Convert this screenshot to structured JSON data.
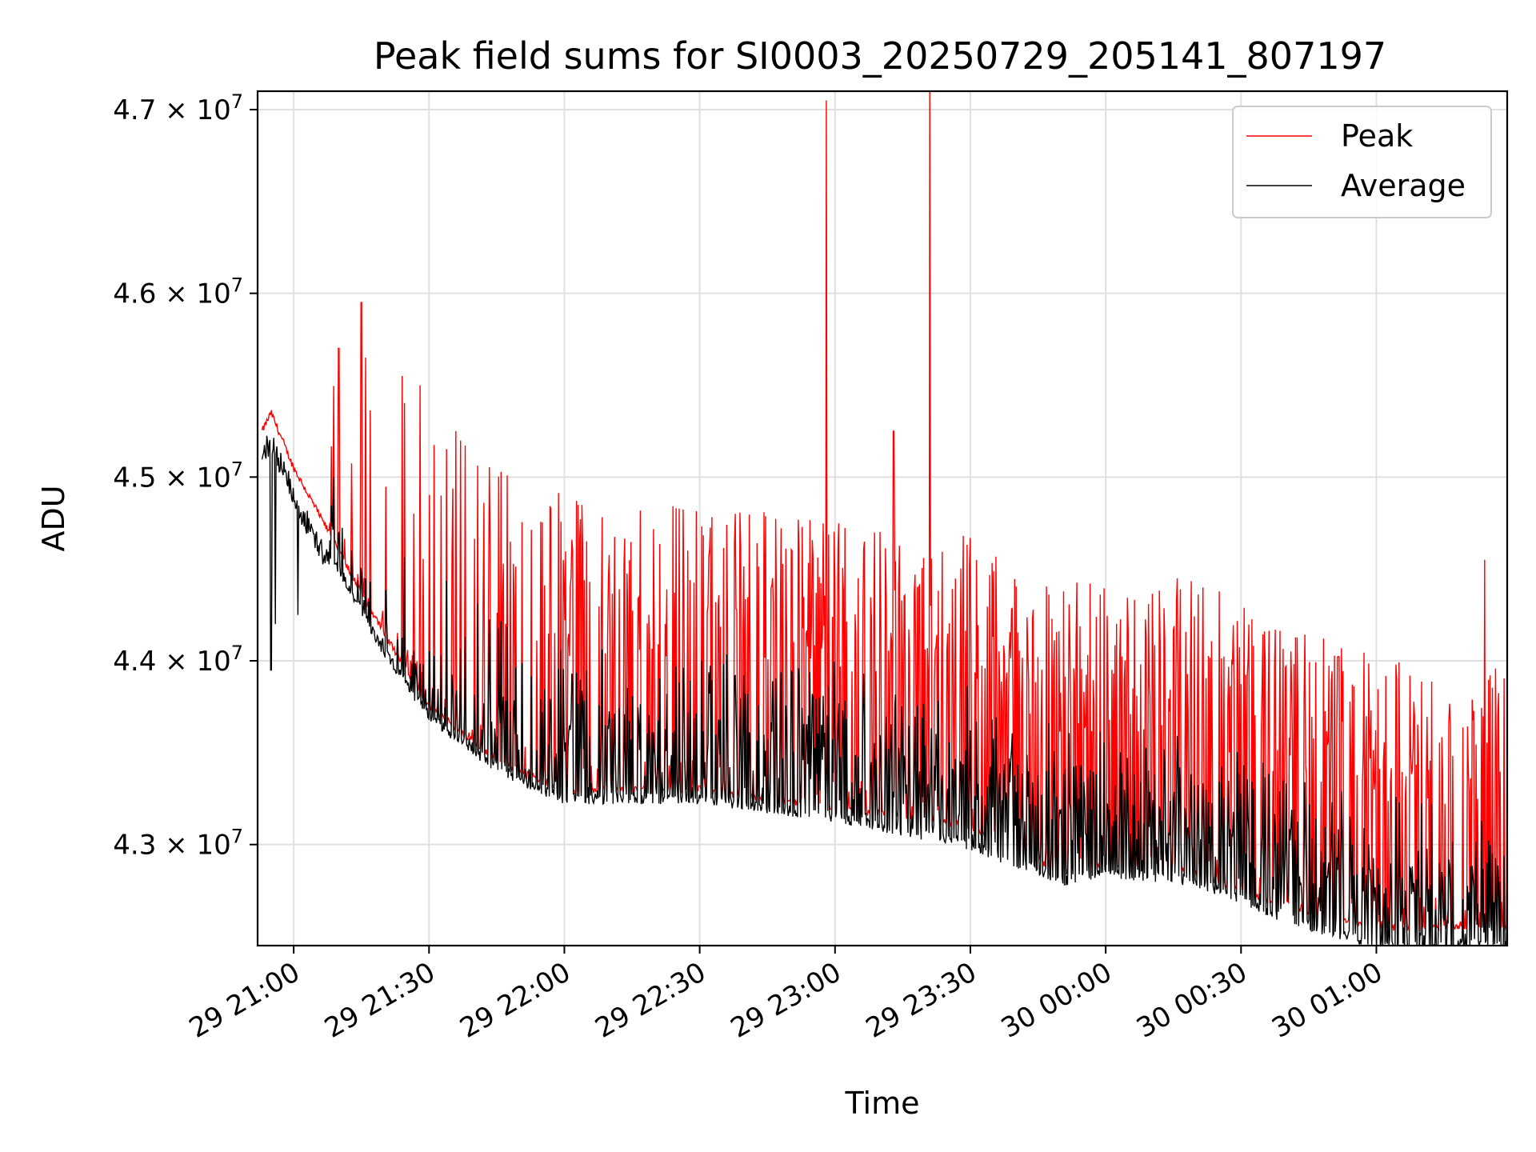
{
  "chart_data": {
    "type": "line",
    "title": "Peak field sums for SI0003_20250729_205141_807197",
    "xlabel": "Time",
    "ylabel": "ADU",
    "x_ticks": [
      "29 21:00",
      "29 21:30",
      "29 22:00",
      "29 22:30",
      "29 23:00",
      "29 23:30",
      "30 00:00",
      "30 00:30",
      "30 01:00"
    ],
    "y_ticks": [
      {
        "mantissa": "4.3",
        "times": "×",
        "base": "10",
        "exp": "7",
        "value": 43000000
      },
      {
        "mantissa": "4.4",
        "times": "×",
        "base": "10",
        "exp": "7",
        "value": 44000000
      },
      {
        "mantissa": "4.5",
        "times": "×",
        "base": "10",
        "exp": "7",
        "value": 45000000
      },
      {
        "mantissa": "4.6",
        "times": "×",
        "base": "10",
        "exp": "7",
        "value": 46000000
      },
      {
        "mantissa": "4.7",
        "times": "×",
        "base": "10",
        "exp": "7",
        "value": 47000000
      }
    ],
    "x_range": [
      "2025-07-29 20:52",
      "2025-07-30 01:29"
    ],
    "ylim": [
      42450000,
      47100000
    ],
    "grid": true,
    "legend_position": "top-right",
    "series": [
      {
        "name": "Peak",
        "color": "#ff0000",
        "baseline_points": [
          [
            "2025-07-29 20:52",
            45200000
          ],
          [
            "2025-07-29 20:55",
            45350000
          ],
          [
            "2025-07-29 21:00",
            45050000
          ],
          [
            "2025-07-29 21:10",
            44600000
          ],
          [
            "2025-07-29 21:20",
            44150000
          ],
          [
            "2025-07-29 21:30",
            43750000
          ],
          [
            "2025-07-29 21:40",
            43550000
          ],
          [
            "2025-07-29 21:50",
            43400000
          ],
          [
            "2025-07-29 22:00",
            43300000
          ],
          [
            "2025-07-29 22:30",
            43300000
          ],
          [
            "2025-07-29 23:00",
            43200000
          ],
          [
            "2025-07-29 23:30",
            43100000
          ],
          [
            "2025-07-29 23:50",
            42850000
          ],
          [
            "2025-07-30 00:00",
            42900000
          ],
          [
            "2025-07-30 00:20",
            42850000
          ],
          [
            "2025-07-30 00:40",
            42650000
          ],
          [
            "2025-07-30 01:00",
            42550000
          ],
          [
            "2025-07-30 01:29",
            42550000
          ]
        ],
        "spike_envelope": [
          [
            "2025-07-29 21:10",
            45500000
          ],
          [
            "2025-07-29 21:30",
            45400000
          ],
          [
            "2025-07-29 21:45",
            45100000
          ],
          [
            "2025-07-29 22:00",
            44900000
          ],
          [
            "2025-07-29 23:00",
            44800000
          ],
          [
            "2025-07-29 23:30",
            44700000
          ],
          [
            "2025-07-29 23:45",
            44400000
          ],
          [
            "2025-07-30 00:00",
            44450000
          ],
          [
            "2025-07-30 00:20",
            44450000
          ],
          [
            "2025-07-30 00:40",
            44200000
          ],
          [
            "2025-07-30 01:00",
            44050000
          ],
          [
            "2025-07-30 01:29",
            44000000
          ]
        ],
        "notable_spikes": [
          [
            "2025-07-29 21:10",
            45700000
          ],
          [
            "2025-07-29 21:15",
            45950000
          ],
          [
            "2025-07-29 21:16",
            45650000
          ],
          [
            "2025-07-29 21:24",
            45550000
          ],
          [
            "2025-07-29 21:28",
            45500000
          ],
          [
            "2025-07-29 21:36",
            45250000
          ],
          [
            "2025-07-29 22:58",
            47050000
          ],
          [
            "2025-07-29 23:13",
            45250000
          ],
          [
            "2025-07-29 23:21",
            47150000
          ],
          [
            "2025-07-30 01:24",
            44550000
          ]
        ]
      },
      {
        "name": "Average",
        "color": "#000000",
        "baseline_points": [
          [
            "2025-07-29 20:52",
            45150000
          ],
          [
            "2025-07-29 20:55",
            45250000
          ],
          [
            "2025-07-29 21:00",
            44950000
          ],
          [
            "2025-07-29 21:10",
            44500000
          ],
          [
            "2025-07-29 21:20",
            44050000
          ],
          [
            "2025-07-29 21:30",
            43700000
          ],
          [
            "2025-07-29 21:40",
            43500000
          ],
          [
            "2025-07-29 21:50",
            43350000
          ],
          [
            "2025-07-29 22:00",
            43250000
          ],
          [
            "2025-07-29 22:30",
            43250000
          ],
          [
            "2025-07-29 23:00",
            43150000
          ],
          [
            "2025-07-29 23:30",
            43000000
          ],
          [
            "2025-07-29 23:50",
            42800000
          ],
          [
            "2025-07-30 00:00",
            42850000
          ],
          [
            "2025-07-30 00:20",
            42800000
          ],
          [
            "2025-07-30 00:40",
            42600000
          ],
          [
            "2025-07-30 01:00",
            42450000
          ],
          [
            "2025-07-30 01:29",
            42450000
          ]
        ],
        "notable_dips": [
          [
            "2025-07-29 20:55",
            43950000
          ],
          [
            "2025-07-29 20:56",
            44200000
          ],
          [
            "2025-07-29 21:01",
            44250000
          ]
        ]
      }
    ]
  }
}
